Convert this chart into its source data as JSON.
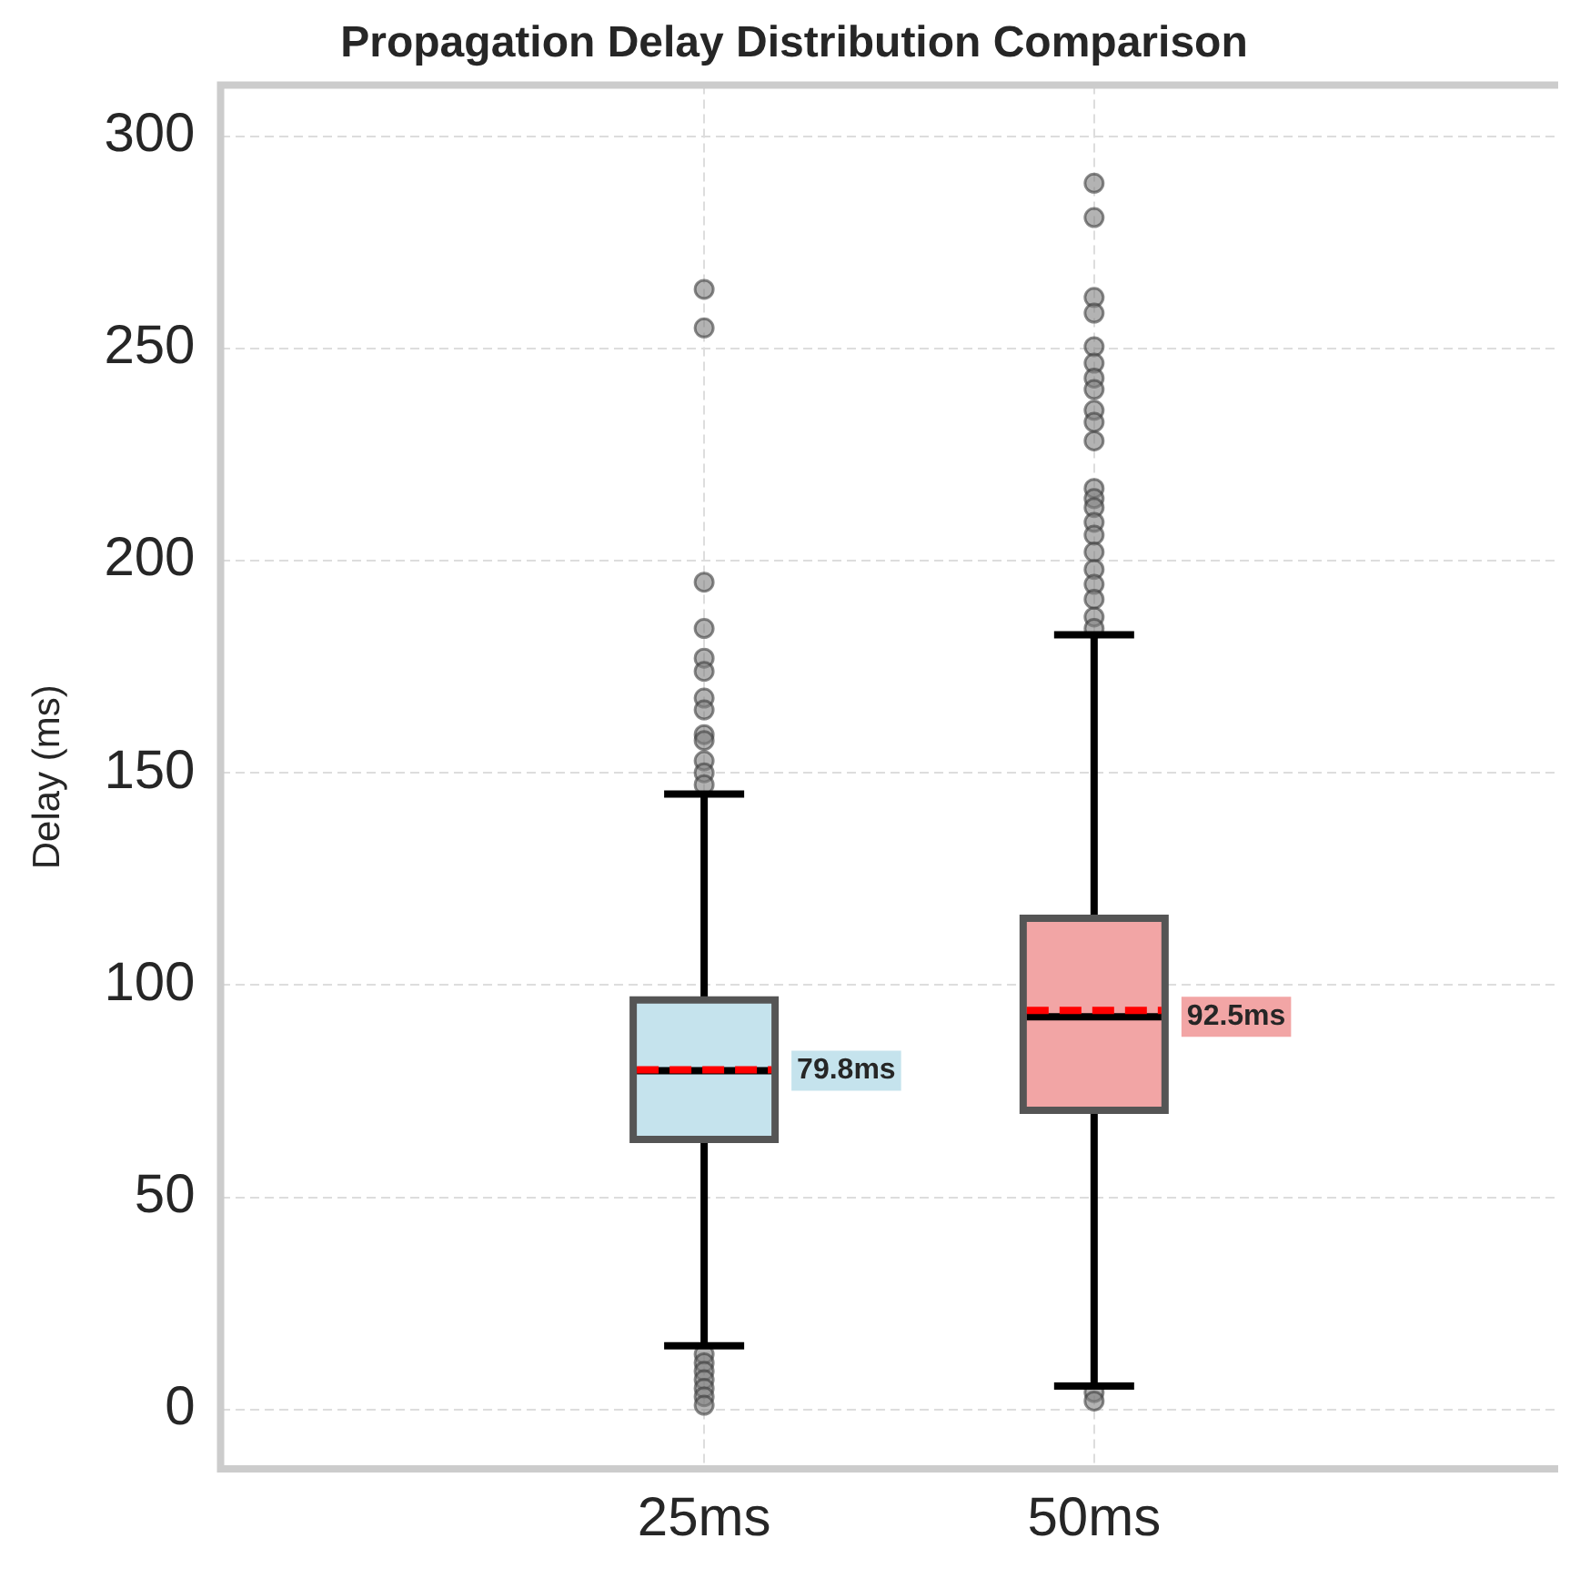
{
  "chart_data": {
    "type": "box",
    "title": "Propagation Delay Distribution Comparison",
    "ylabel": "Delay (ms)",
    "categories": [
      "25ms",
      "50ms"
    ],
    "colors": [
      "#c5e3ed",
      "#f2a5a5"
    ],
    "boxes": [
      {
        "low": 15,
        "q1": 63.6,
        "median": 79.8,
        "q3": 96.5,
        "high": 145,
        "mean": 80,
        "outliers": [
          263.9,
          254.8,
          194.9,
          184,
          177,
          173.9,
          167.6,
          164.8,
          159,
          157.6,
          152.8,
          150,
          147.2,
          13,
          11,
          9,
          7,
          5,
          3,
          1
        ]
      },
      {
        "low": 5.5,
        "q1": 70.5,
        "median": 92.5,
        "q3": 115.7,
        "high": 182.5,
        "mean": 94,
        "outliers": [
          288.9,
          280.8,
          262,
          258.3,
          250.4,
          246.5,
          243,
          240.3,
          235.4,
          232.6,
          228.2,
          217,
          214.6,
          212.5,
          209,
          206,
          202,
          197.9,
          194.4,
          190.9,
          186.7,
          184,
          4,
          2
        ]
      }
    ],
    "value_labels": [
      "79.8ms",
      "92.5ms"
    ],
    "ylim": [
      -14,
      312
    ],
    "yticks": [
      0,
      50,
      100,
      150,
      200,
      250,
      300
    ],
    "grid": true
  }
}
